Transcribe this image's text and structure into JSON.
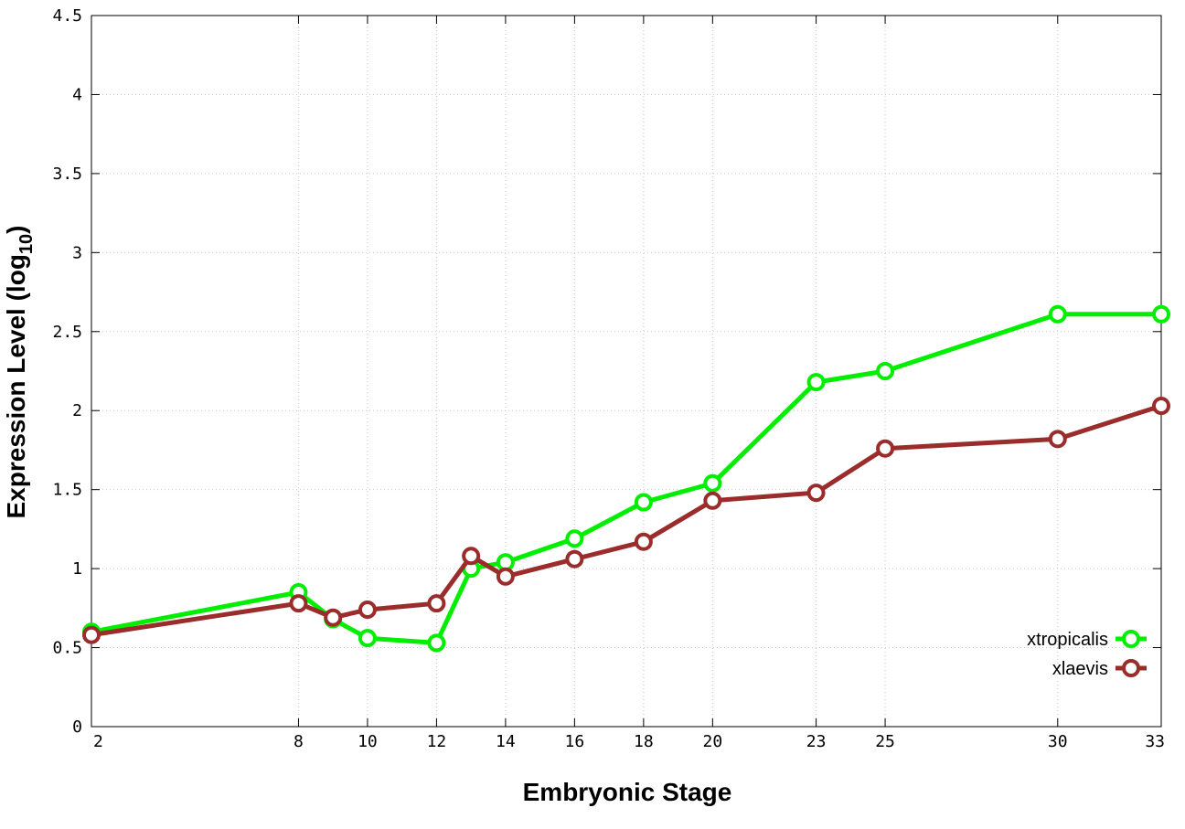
{
  "chart_data": {
    "type": "line",
    "xlabel": "Embryonic Stage",
    "ylabel_main": "Expression Level (log",
    "ylabel_sub": "10",
    "ylabel_close": ")",
    "x_ticks": [
      2,
      8,
      10,
      12,
      14,
      16,
      18,
      20,
      23,
      25,
      30,
      33
    ],
    "y_ticks": [
      "0",
      "0.5",
      "1",
      "1.5",
      "2",
      "2.5",
      "3",
      "3.5",
      "4",
      "4.5"
    ],
    "xlim": [
      2,
      33
    ],
    "ylim": [
      0,
      4.5
    ],
    "grid": true,
    "legend_position": "bottom-right",
    "x": [
      2,
      8,
      9,
      10,
      12,
      13,
      14,
      16,
      18,
      20,
      23,
      25,
      30,
      33
    ],
    "series": [
      {
        "name": "xtropicalis",
        "color": "#00ee00",
        "values": [
          0.6,
          0.85,
          0.68,
          0.56,
          0.53,
          1.0,
          1.04,
          1.19,
          1.42,
          1.54,
          2.18,
          2.25,
          2.61,
          2.61
        ]
      },
      {
        "name": "xlaevis",
        "color": "#9a2c2c",
        "values": [
          0.58,
          0.78,
          0.69,
          0.74,
          0.78,
          1.08,
          0.95,
          1.06,
          1.17,
          1.43,
          1.48,
          1.76,
          1.82,
          2.03
        ]
      }
    ]
  }
}
